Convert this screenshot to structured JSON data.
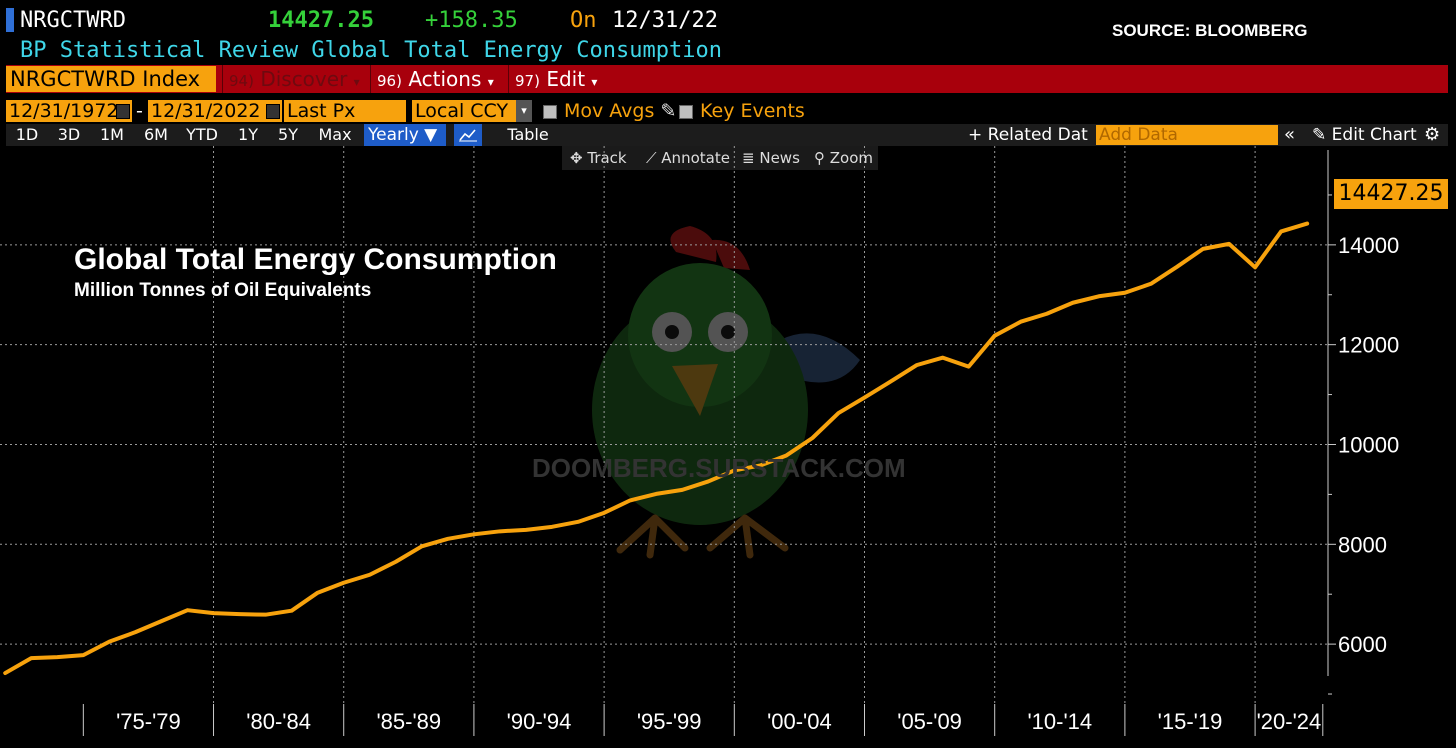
{
  "header": {
    "ticker": "NRGCTWRD",
    "last_value": "14427.25",
    "change": "+158.35",
    "on_label": "On",
    "on_date": "12/31/22",
    "source": "SOURCE: BLOOMBERG",
    "subtitle": "BP Statistical Review Global Total Energy Consumption"
  },
  "menubar": {
    "index": "NRGCTWRD Index",
    "discover_num": "94)",
    "discover": "Discover",
    "actions_num": "96)",
    "actions": "Actions",
    "edit_num": "97)",
    "edit": "Edit",
    "caret": "▾"
  },
  "controls": {
    "start_date": "12/31/1972",
    "dash": "-",
    "end_date": "12/31/2022",
    "field": "Last Px",
    "currency": "Local CCY",
    "mov_avgs": "Mov Avgs",
    "key_events": "Key Events"
  },
  "toolbar": {
    "ranges": [
      "1D",
      "3D",
      "1M",
      "6M",
      "YTD",
      "1Y",
      "5Y",
      "Max"
    ],
    "frequency": "Yearly ▼",
    "table": "Table",
    "related": "+ Related Dat",
    "add_data_placeholder": "Add Data",
    "dbl_chevron": "«",
    "edit_chart": "Edit Chart",
    "gear": "⚙"
  },
  "chart_tools": {
    "track": "Track",
    "annotate": "Annotate",
    "news": "News",
    "zoom": "Zoom"
  },
  "watermark": "DOOMBERG.SUBSTACK.COM",
  "colors": {
    "line": "#f7a20d",
    "grid": "#9a9a9a",
    "menu_red": "#a8000c",
    "accent_blue": "#1e5cc8"
  },
  "chart_data": {
    "type": "line",
    "title": "Global Total Energy Consumption",
    "subtitle": "Million Tonnes of Oil Equivalents",
    "xlabel": "",
    "ylabel": "",
    "x": [
      1972,
      1973,
      1974,
      1975,
      1976,
      1977,
      1978,
      1979,
      1980,
      1981,
      1982,
      1983,
      1984,
      1985,
      1986,
      1987,
      1988,
      1989,
      1990,
      1991,
      1992,
      1993,
      1994,
      1995,
      1996,
      1997,
      1998,
      1999,
      2000,
      2001,
      2002,
      2003,
      2004,
      2005,
      2006,
      2007,
      2008,
      2009,
      2010,
      2011,
      2012,
      2013,
      2014,
      2015,
      2016,
      2017,
      2018,
      2019,
      2020,
      2021,
      2022
    ],
    "series": [
      {
        "name": "NRGCTWRD Index",
        "values": [
          5420,
          5720,
          5740,
          5780,
          6050,
          6240,
          6460,
          6680,
          6620,
          6600,
          6590,
          6670,
          7030,
          7230,
          7390,
          7650,
          7960,
          8110,
          8200,
          8260,
          8290,
          8350,
          8450,
          8630,
          8880,
          9010,
          9090,
          9260,
          9480,
          9580,
          9780,
          10130,
          10630,
          10940,
          11260,
          11590,
          11740,
          11560,
          12180,
          12460,
          12620,
          12840,
          12970,
          13040,
          13220,
          13560,
          13920,
          14020,
          13550,
          14269,
          14427.25
        ]
      }
    ],
    "last_value_label": "14427.25",
    "x_tick_labels": [
      "'75-'79",
      "'80-'84",
      "'85-'89",
      "'90-'94",
      "'95-'99",
      "'00-'04",
      "'05-'09",
      "'10-'14",
      "'15-'19",
      "'20-'24"
    ],
    "x_tick_years": [
      1975,
      1980,
      1985,
      1990,
      1995,
      2000,
      2005,
      2010,
      2015,
      2020
    ],
    "y_ticks": [
      6000,
      8000,
      10000,
      12000,
      14000
    ],
    "y_tick_labels": [
      "6000",
      "8000",
      "10000",
      "12000",
      "14000"
    ],
    "ylim": [
      4800,
      15500
    ],
    "grid": true,
    "legend": "none"
  }
}
